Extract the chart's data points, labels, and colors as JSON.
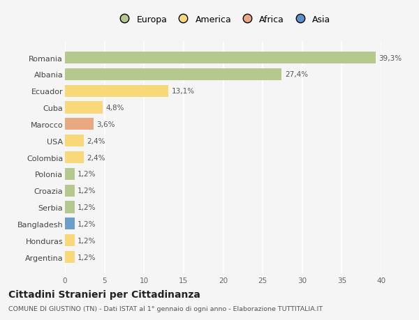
{
  "countries": [
    "Romania",
    "Albania",
    "Ecuador",
    "Cuba",
    "Marocco",
    "USA",
    "Colombia",
    "Polonia",
    "Croazia",
    "Serbia",
    "Bangladesh",
    "Honduras",
    "Argentina"
  ],
  "values": [
    39.3,
    27.4,
    13.1,
    4.8,
    3.6,
    2.4,
    2.4,
    1.2,
    1.2,
    1.2,
    1.2,
    1.2,
    1.2
  ],
  "labels": [
    "39,3%",
    "27,4%",
    "13,1%",
    "4,8%",
    "3,6%",
    "2,4%",
    "2,4%",
    "1,2%",
    "1,2%",
    "1,2%",
    "1,2%",
    "1,2%",
    "1,2%"
  ],
  "colors": [
    "#b5c98e",
    "#b5c98e",
    "#f9d87a",
    "#f9d87a",
    "#e8a882",
    "#f9d87a",
    "#f9d87a",
    "#b5c98e",
    "#b5c98e",
    "#b5c98e",
    "#6b9fc9",
    "#f9d87a",
    "#f9d87a"
  ],
  "legend": [
    {
      "label": "Europa",
      "color": "#b5c98e"
    },
    {
      "label": "America",
      "color": "#f9d87a"
    },
    {
      "label": "Africa",
      "color": "#e8a882"
    },
    {
      "label": "Asia",
      "color": "#5b8fc9"
    }
  ],
  "xlim": [
    0,
    40
  ],
  "xticks": [
    0,
    5,
    10,
    15,
    20,
    25,
    30,
    35,
    40
  ],
  "title": "Cittadini Stranieri per Cittadinanza",
  "subtitle": "COMUNE DI GIUSTINO (TN) - Dati ISTAT al 1° gennaio di ogni anno - Elaborazione TUTTITALIA.IT",
  "bg_color": "#f5f5f5",
  "grid_color": "#ffffff",
  "bar_height": 0.72,
  "label_fontsize": 7.5,
  "ytick_fontsize": 8,
  "xtick_fontsize": 7.5
}
